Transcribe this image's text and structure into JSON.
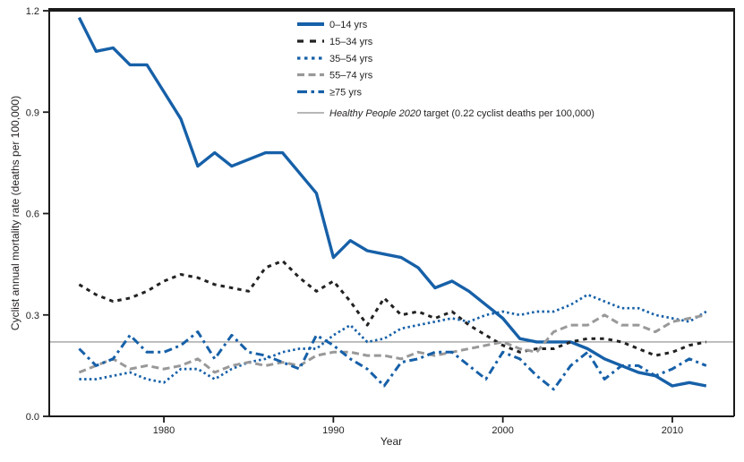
{
  "figure": {
    "y_axis_label": "Cyclist annual mortality rate (deaths per 100,000)",
    "x_axis_label": "Year"
  },
  "chart_data": {
    "type": "line",
    "title": "",
    "xlabel": "Year",
    "ylabel": "Cyclist annual mortality rate (deaths per 100,000)",
    "ylim": [
      0.0,
      1.2
    ],
    "yticks": [
      0.0,
      0.3,
      0.6,
      0.9,
      1.2
    ],
    "xticks": [
      1980,
      1990,
      2000,
      2010
    ],
    "xlim": [
      1973.2,
      2013.7
    ],
    "grid": false,
    "legend_position": "upper-center-left",
    "x": [
      1975,
      1976,
      1977,
      1978,
      1979,
      1980,
      1981,
      1982,
      1983,
      1984,
      1985,
      1986,
      1987,
      1988,
      1989,
      1990,
      1991,
      1992,
      1993,
      1994,
      1995,
      1996,
      1997,
      1998,
      1999,
      2000,
      2001,
      2002,
      2003,
      2004,
      2005,
      2006,
      2007,
      2008,
      2009,
      2010,
      2011,
      2012
    ],
    "series": [
      {
        "name": "0–14 yrs",
        "color": "#1660A8",
        "style": "solid",
        "width": 3.4,
        "dash": "",
        "legend_dash": "",
        "values": [
          1.18,
          1.08,
          1.09,
          1.04,
          1.04,
          0.96,
          0.88,
          0.74,
          0.78,
          0.74,
          0.76,
          0.78,
          0.78,
          0.72,
          0.66,
          0.47,
          0.52,
          0.49,
          0.48,
          0.47,
          0.44,
          0.38,
          0.4,
          0.37,
          0.33,
          0.29,
          0.23,
          0.22,
          0.22,
          0.22,
          0.2,
          0.17,
          0.15,
          0.13,
          0.12,
          0.09,
          0.1,
          0.09
        ]
      },
      {
        "name": "15–34 yrs",
        "color": "#222222",
        "style": "dashed",
        "width": 3.0,
        "dash": "4.5 5",
        "legend_dash": "7 7",
        "values": [
          0.39,
          0.36,
          0.34,
          0.35,
          0.37,
          0.4,
          0.42,
          0.41,
          0.39,
          0.38,
          0.37,
          0.44,
          0.46,
          0.41,
          0.37,
          0.4,
          0.34,
          0.27,
          0.35,
          0.3,
          0.31,
          0.29,
          0.31,
          0.27,
          0.24,
          0.21,
          0.19,
          0.2,
          0.2,
          0.22,
          0.23,
          0.23,
          0.22,
          0.2,
          0.18,
          0.19,
          0.21,
          0.22
        ]
      },
      {
        "name": "35–54 yrs",
        "color": "#1660A8",
        "style": "dotted",
        "width": 2.7,
        "dash": "2.5 3.2",
        "legend_dash": "3.5 4.5",
        "values": [
          0.11,
          0.11,
          0.12,
          0.13,
          0.11,
          0.1,
          0.14,
          0.14,
          0.11,
          0.14,
          0.16,
          0.17,
          0.19,
          0.2,
          0.2,
          0.24,
          0.27,
          0.22,
          0.23,
          0.26,
          0.27,
          0.28,
          0.29,
          0.28,
          0.3,
          0.31,
          0.3,
          0.31,
          0.31,
          0.33,
          0.36,
          0.34,
          0.32,
          0.32,
          0.3,
          0.29,
          0.28,
          0.31
        ]
      },
      {
        "name": "55–74 yrs",
        "color": "#999999",
        "style": "dashed",
        "width": 3.0,
        "dash": "8 4.5",
        "legend_dash": "8 4.5",
        "values": [
          0.13,
          0.15,
          0.17,
          0.14,
          0.15,
          0.14,
          0.15,
          0.17,
          0.13,
          0.15,
          0.16,
          0.15,
          0.16,
          0.15,
          0.18,
          0.19,
          0.19,
          0.18,
          0.18,
          0.17,
          0.19,
          0.18,
          0.19,
          0.2,
          0.21,
          0.22,
          0.2,
          0.19,
          0.25,
          0.27,
          0.27,
          0.3,
          0.27,
          0.27,
          0.25,
          0.28,
          0.29,
          0.3
        ]
      },
      {
        "name": "≥75 yrs",
        "color": "#1660A8",
        "style": "dashdot",
        "width": 3.0,
        "dash": "9 4.5 3 4.5",
        "legend_dash": "11 4.5 3.5 4.5",
        "values": [
          0.2,
          0.15,
          0.17,
          0.24,
          0.19,
          0.19,
          0.21,
          0.25,
          0.17,
          0.24,
          0.19,
          0.18,
          0.16,
          0.14,
          0.24,
          0.21,
          0.17,
          0.14,
          0.09,
          0.16,
          0.17,
          0.19,
          0.19,
          0.15,
          0.11,
          0.19,
          0.17,
          0.12,
          0.08,
          0.15,
          0.19,
          0.11,
          0.15,
          0.15,
          0.12,
          0.14,
          0.17,
          0.15
        ]
      }
    ],
    "target_line": {
      "value": 0.22,
      "color": "#8C8C8C",
      "label_italic": "Healthy People 2020",
      "label_rest": " target (0.22 cyclist deaths per 100,000)"
    },
    "ytick_labels": [
      "0.0",
      "0.3",
      "0.6",
      "0.9",
      "1.2"
    ],
    "xtick_labels": [
      "1980",
      "1990",
      "2000",
      "2010"
    ]
  },
  "colors": {
    "frame": "#1a1a1a",
    "text": "#231f20",
    "background": "#ffffff"
  }
}
